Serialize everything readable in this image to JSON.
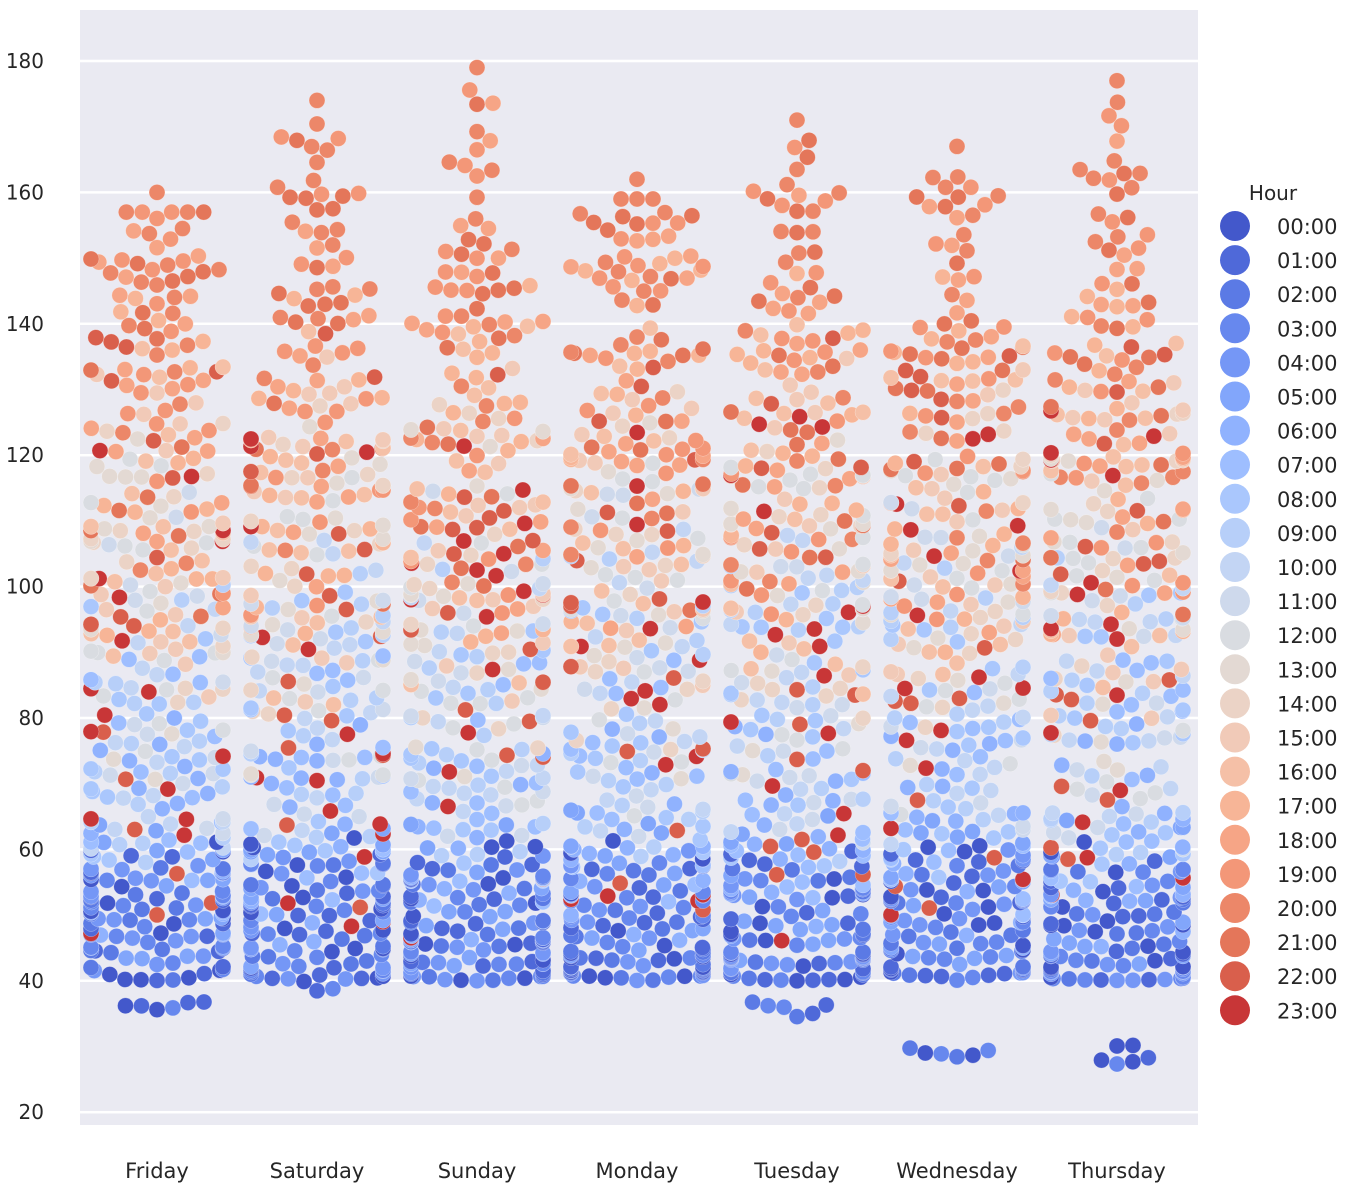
{
  "chart_data": {
    "type": "swarm",
    "title": "",
    "xlabel": "",
    "ylabel": "",
    "ylim": [
      18,
      187
    ],
    "yticks": [
      20,
      40,
      60,
      80,
      100,
      120,
      140,
      160,
      180
    ],
    "categories": [
      "Friday",
      "Saturday",
      "Sunday",
      "Monday",
      "Tuesday",
      "Wednesday",
      "Thursday"
    ],
    "grid": true,
    "background": "#eaeaf2",
    "legend": {
      "title": "Hour",
      "placement": "right",
      "labels": [
        "00:00",
        "01:00",
        "02:00",
        "03:00",
        "04:00",
        "05:00",
        "06:00",
        "07:00",
        "08:00",
        "09:00",
        "10:00",
        "11:00",
        "12:00",
        "13:00",
        "14:00",
        "15:00",
        "16:00",
        "17:00",
        "18:00",
        "19:00",
        "20:00",
        "21:00",
        "22:00",
        "23:00"
      ]
    },
    "hue_colors": [
      "#4358cb",
      "#4f69d9",
      "#5b7ae5",
      "#6788ee",
      "#7597f6",
      "#82a6fb",
      "#90b2fe",
      "#9ebeff",
      "#aac7fd",
      "#b7cff9",
      "#c3d5f4",
      "#ced9ec",
      "#d9dce1",
      "#e3d9d3",
      "#ebd3c6",
      "#f1cab8",
      "#f5c0a7",
      "#f7b597",
      "#f6a586",
      "#f39778",
      "#ec8769",
      "#e4765a",
      "#d95f4c",
      "#c83637"
    ],
    "hour_value_ranges": [
      [
        40,
        62
      ],
      [
        40,
        60
      ],
      [
        40,
        58
      ],
      [
        40,
        58
      ],
      [
        40,
        60
      ],
      [
        42,
        66
      ],
      [
        45,
        80
      ],
      [
        50,
        90
      ],
      [
        55,
        100
      ],
      [
        58,
        105
      ],
      [
        60,
        110
      ],
      [
        60,
        115
      ],
      [
        65,
        120
      ],
      [
        70,
        125
      ],
      [
        72,
        130
      ],
      [
        78,
        135
      ],
      [
        82,
        140
      ],
      [
        88,
        150
      ],
      [
        92,
        155
      ],
      [
        95,
        160
      ],
      [
        100,
        168
      ],
      [
        95,
        160
      ],
      [
        50,
        140
      ],
      [
        45,
        130
      ]
    ],
    "day_min": [
      33,
      38,
      39,
      40,
      34,
      28,
      27
    ],
    "day_max": [
      160,
      174,
      179,
      162,
      171,
      167,
      177
    ]
  }
}
